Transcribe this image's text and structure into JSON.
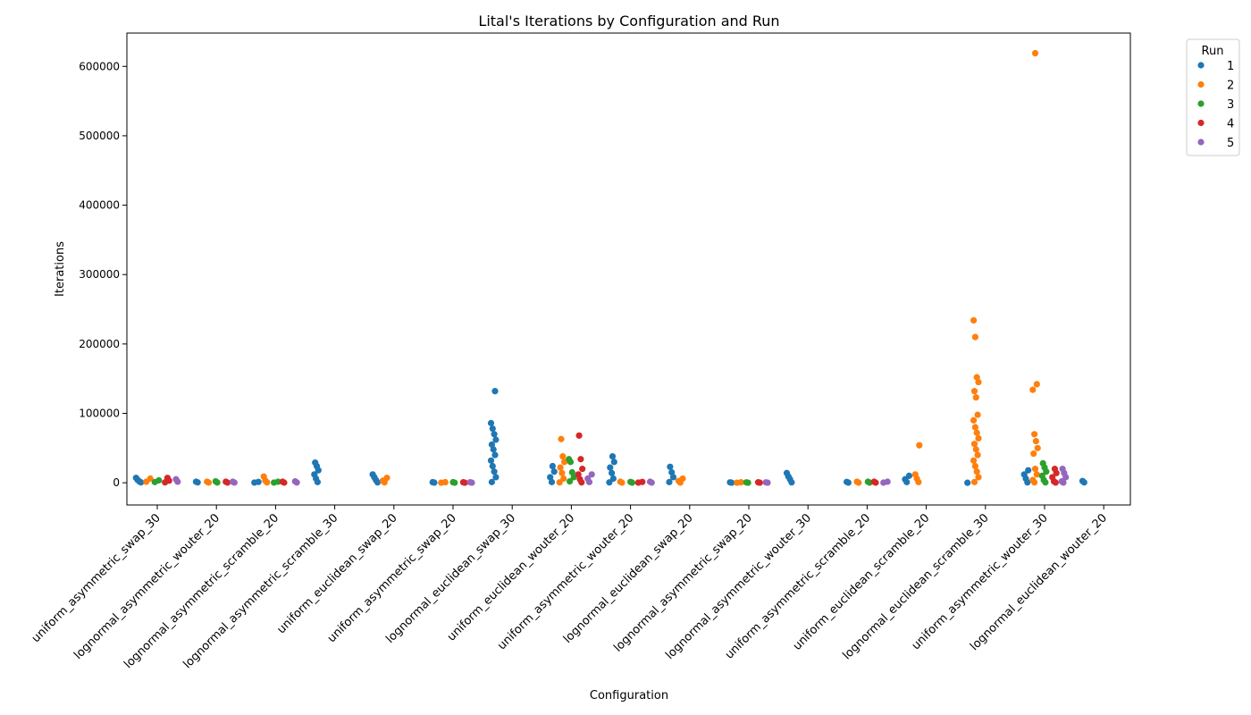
{
  "chart_data": {
    "type": "scatter",
    "title": "Lital's Iterations by Configuration and Run",
    "xlabel": "Configuration",
    "ylabel": "Iterations",
    "ylim": [
      -32000,
      648000
    ],
    "yticks": [
      0,
      100000,
      200000,
      300000,
      400000,
      500000,
      600000
    ],
    "grid": false,
    "legend": {
      "title": "Run",
      "placement": "outside-top-right"
    },
    "categories": [
      "uniform_asymmetric_swap_30",
      "lognormal_asymmetric_wouter_20",
      "lognormal_asymmetric_scramble_20",
      "lognormal_asymmetric_scramble_30",
      "uniform_euclidean_swap_20",
      "uniform_asymmetric_swap_20",
      "lognormal_euclidean_swap_30",
      "uniform_euclidean_wouter_20",
      "uniform_asymmetric_wouter_20",
      "lognormal_euclidean_swap_20",
      "lognormal_asymmetric_swap_20",
      "lognormal_asymmetric_wouter_30",
      "uniform_asymmetric_scramble_20",
      "uniform_euclidean_scramble_20",
      "lognormal_euclidean_scramble_30",
      "uniform_asymmetric_wouter_30",
      "lognormal_euclidean_wouter_20"
    ],
    "series": [
      {
        "name": "1",
        "color": "#1f77b4",
        "points": [
          [
            0,
            7000
          ],
          [
            0,
            4000
          ],
          [
            0,
            2000
          ],
          [
            0,
            500
          ],
          [
            1,
            1500
          ],
          [
            1,
            500
          ],
          [
            2,
            1200
          ],
          [
            2,
            300
          ],
          [
            3,
            29000
          ],
          [
            3,
            24000
          ],
          [
            3,
            18000
          ],
          [
            3,
            12000
          ],
          [
            3,
            6000
          ],
          [
            3,
            1000
          ],
          [
            4,
            12000
          ],
          [
            4,
            8000
          ],
          [
            4,
            4000
          ],
          [
            4,
            500
          ],
          [
            5,
            800
          ],
          [
            5,
            200
          ],
          [
            6,
            132000
          ],
          [
            6,
            86000
          ],
          [
            6,
            78000
          ],
          [
            6,
            70000
          ],
          [
            6,
            62000
          ],
          [
            6,
            55000
          ],
          [
            6,
            48000
          ],
          [
            6,
            40000
          ],
          [
            6,
            32000
          ],
          [
            6,
            24000
          ],
          [
            6,
            16000
          ],
          [
            6,
            8000
          ],
          [
            6,
            1000
          ],
          [
            7,
            24000
          ],
          [
            7,
            16000
          ],
          [
            7,
            8000
          ],
          [
            7,
            1000
          ],
          [
            8,
            38000
          ],
          [
            8,
            30000
          ],
          [
            8,
            22000
          ],
          [
            8,
            14000
          ],
          [
            8,
            6000
          ],
          [
            8,
            500
          ],
          [
            9,
            23000
          ],
          [
            9,
            15000
          ],
          [
            9,
            8000
          ],
          [
            9,
            1000
          ],
          [
            10,
            600
          ],
          [
            10,
            100
          ],
          [
            11,
            14000
          ],
          [
            11,
            9000
          ],
          [
            11,
            5000
          ],
          [
            11,
            500
          ],
          [
            12,
            1200
          ],
          [
            12,
            200
          ],
          [
            13,
            10000
          ],
          [
            13,
            5000
          ],
          [
            13,
            1000
          ],
          [
            14,
            0
          ],
          [
            15,
            18000
          ],
          [
            15,
            12000
          ],
          [
            15,
            6000
          ],
          [
            15,
            500
          ],
          [
            16,
            2500
          ],
          [
            16,
            500
          ]
        ]
      },
      {
        "name": "2",
        "color": "#ff7f0e",
        "points": [
          [
            0,
            6000
          ],
          [
            0,
            1500
          ],
          [
            1,
            1500
          ],
          [
            1,
            300
          ],
          [
            2,
            9000
          ],
          [
            2,
            3000
          ],
          [
            2,
            500
          ],
          [
            4,
            7000
          ],
          [
            4,
            3000
          ],
          [
            4,
            500
          ],
          [
            5,
            800
          ],
          [
            5,
            100
          ],
          [
            7,
            63000
          ],
          [
            7,
            38000
          ],
          [
            7,
            30000
          ],
          [
            7,
            22000
          ],
          [
            7,
            14000
          ],
          [
            7,
            6000
          ],
          [
            7,
            500
          ],
          [
            8,
            1500
          ],
          [
            8,
            200
          ],
          [
            9,
            6000
          ],
          [
            9,
            2500
          ],
          [
            9,
            300
          ],
          [
            10,
            700
          ],
          [
            10,
            100
          ],
          [
            12,
            1500
          ],
          [
            12,
            200
          ],
          [
            13,
            54000
          ],
          [
            13,
            12000
          ],
          [
            13,
            6000
          ],
          [
            13,
            1000
          ],
          [
            14,
            234000
          ],
          [
            14,
            210000
          ],
          [
            14,
            152000
          ],
          [
            14,
            145000
          ],
          [
            14,
            132000
          ],
          [
            14,
            123000
          ],
          [
            14,
            98000
          ],
          [
            14,
            90000
          ],
          [
            14,
            80000
          ],
          [
            14,
            72000
          ],
          [
            14,
            64000
          ],
          [
            14,
            56000
          ],
          [
            14,
            48000
          ],
          [
            14,
            40000
          ],
          [
            14,
            32000
          ],
          [
            14,
            24000
          ],
          [
            14,
            16000
          ],
          [
            14,
            8000
          ],
          [
            14,
            1000
          ],
          [
            15,
            619000
          ],
          [
            15,
            142000
          ],
          [
            15,
            134000
          ],
          [
            15,
            70000
          ],
          [
            15,
            60000
          ],
          [
            15,
            50000
          ],
          [
            15,
            42000
          ],
          [
            15,
            20000
          ],
          [
            15,
            12000
          ],
          [
            15,
            4000
          ],
          [
            15,
            500
          ]
        ]
      },
      {
        "name": "3",
        "color": "#2ca02c",
        "points": [
          [
            0,
            3500
          ],
          [
            0,
            1000
          ],
          [
            1,
            2000
          ],
          [
            1,
            400
          ],
          [
            2,
            1500
          ],
          [
            2,
            300
          ],
          [
            5,
            800
          ],
          [
            5,
            100
          ],
          [
            7,
            34000
          ],
          [
            7,
            30000
          ],
          [
            7,
            15000
          ],
          [
            7,
            8000
          ],
          [
            7,
            2000
          ],
          [
            8,
            1200
          ],
          [
            8,
            200
          ],
          [
            10,
            600
          ],
          [
            10,
            100
          ],
          [
            12,
            1500
          ],
          [
            12,
            200
          ],
          [
            15,
            28000
          ],
          [
            15,
            22000
          ],
          [
            15,
            16000
          ],
          [
            15,
            10000
          ],
          [
            15,
            4000
          ],
          [
            15,
            500
          ]
        ]
      },
      {
        "name": "4",
        "color": "#d62728",
        "points": [
          [
            0,
            7000
          ],
          [
            0,
            3000
          ],
          [
            0,
            500
          ],
          [
            1,
            1500
          ],
          [
            1,
            300
          ],
          [
            2,
            1500
          ],
          [
            2,
            200
          ],
          [
            5,
            700
          ],
          [
            5,
            100
          ],
          [
            7,
            68000
          ],
          [
            7,
            34000
          ],
          [
            7,
            20000
          ],
          [
            7,
            12000
          ],
          [
            7,
            5000
          ],
          [
            7,
            500
          ],
          [
            8,
            1200
          ],
          [
            8,
            200
          ],
          [
            10,
            700
          ],
          [
            10,
            100
          ],
          [
            12,
            1500
          ],
          [
            12,
            200
          ],
          [
            15,
            20000
          ],
          [
            15,
            14000
          ],
          [
            15,
            8000
          ],
          [
            15,
            2000
          ],
          [
            15,
            300
          ]
        ]
      },
      {
        "name": "5",
        "color": "#9467bd",
        "points": [
          [
            0,
            5000
          ],
          [
            0,
            1500
          ],
          [
            1,
            1500
          ],
          [
            1,
            300
          ],
          [
            2,
            2000
          ],
          [
            2,
            400
          ],
          [
            5,
            700
          ],
          [
            5,
            100
          ],
          [
            7,
            12000
          ],
          [
            7,
            6000
          ],
          [
            7,
            1000
          ],
          [
            8,
            1500
          ],
          [
            8,
            200
          ],
          [
            10,
            600
          ],
          [
            10,
            100
          ],
          [
            12,
            1500
          ],
          [
            12,
            200
          ],
          [
            15,
            20000
          ],
          [
            15,
            14000
          ],
          [
            15,
            8000
          ],
          [
            15,
            2000
          ],
          [
            15,
            300
          ]
        ]
      }
    ]
  }
}
